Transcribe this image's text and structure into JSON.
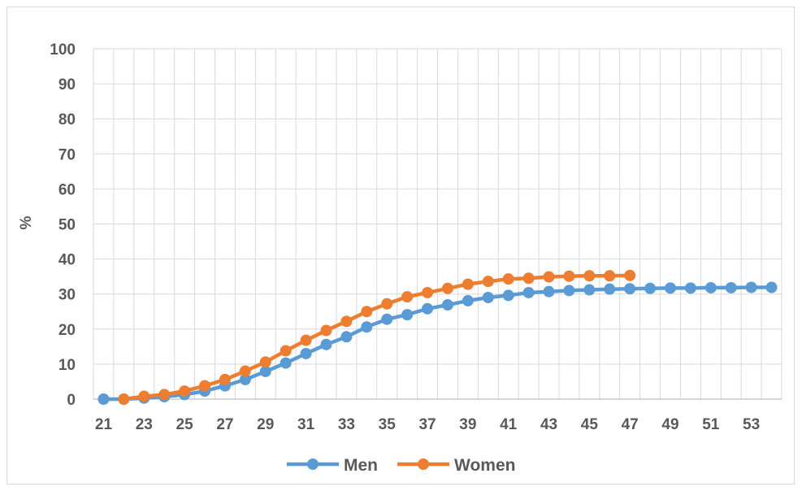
{
  "chart_data": {
    "type": "line",
    "ylabel": "%",
    "xlabel": "",
    "ylim": [
      0,
      100
    ],
    "yticks": [
      0,
      10,
      20,
      30,
      40,
      50,
      60,
      70,
      80,
      90,
      100
    ],
    "xlim": [
      21,
      54
    ],
    "xticks": [
      21,
      23,
      25,
      27,
      29,
      31,
      33,
      35,
      37,
      39,
      41,
      43,
      45,
      47,
      49,
      51,
      53
    ],
    "grid": true,
    "legend_position": "bottom",
    "series": [
      {
        "name": "Men",
        "color": "#5b9bd5",
        "x": [
          21,
          22,
          23,
          24,
          25,
          26,
          27,
          28,
          29,
          30,
          31,
          32,
          33,
          34,
          35,
          36,
          37,
          38,
          39,
          40,
          41,
          42,
          43,
          44,
          45,
          46,
          47,
          48,
          49,
          50,
          51,
          52,
          53,
          54
        ],
        "values": [
          0,
          0,
          0.3,
          0.7,
          1.3,
          2.3,
          3.8,
          5.6,
          7.9,
          10.3,
          13.0,
          15.6,
          17.8,
          20.6,
          22.8,
          24.1,
          25.8,
          26.9,
          28.1,
          29.0,
          29.6,
          30.4,
          30.7,
          31.0,
          31.2,
          31.4,
          31.5,
          31.6,
          31.7,
          31.7,
          31.8,
          31.8,
          31.9,
          31.9
        ]
      },
      {
        "name": "Women",
        "color": "#ed7d31",
        "x": [
          22,
          23,
          24,
          25,
          26,
          27,
          28,
          29,
          30,
          31,
          32,
          33,
          34,
          35,
          36,
          37,
          38,
          39,
          40,
          41,
          42,
          43,
          44,
          45,
          46,
          47
        ],
        "values": [
          0,
          0.8,
          1.3,
          2.3,
          3.8,
          5.6,
          8.0,
          10.6,
          13.8,
          16.8,
          19.6,
          22.2,
          25.0,
          27.2,
          29.2,
          30.4,
          31.6,
          32.8,
          33.6,
          34.3,
          34.5,
          34.9,
          35.1,
          35.2,
          35.2,
          35.3
        ]
      }
    ]
  }
}
